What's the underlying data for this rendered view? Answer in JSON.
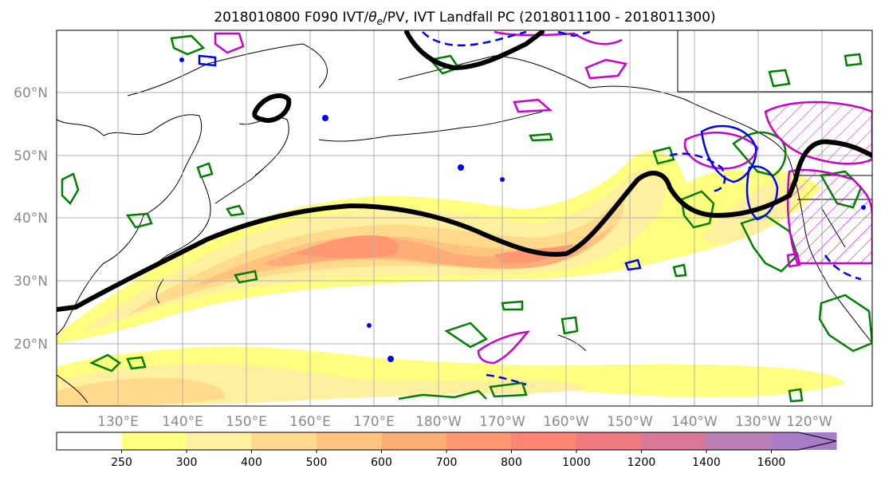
{
  "title": {
    "prefix": "2018010800 F090 IVT/",
    "theta": "θ",
    "theta_sub": "e",
    "suffix": "/PV, IVT Landfall PC (2018011100 - 2018011300)"
  },
  "map": {
    "lat_labels": [
      "60°N",
      "50°N",
      "40°N",
      "30°N",
      "20°N"
    ],
    "lon_labels": [
      "130°E",
      "140°E",
      "150°E",
      "160°E",
      "170°E",
      "180°W",
      "170°W",
      "160°W",
      "150°W",
      "140°W",
      "130°W",
      "120°W"
    ]
  },
  "colorbar": {
    "tick_labels": [
      "250",
      "300",
      "400",
      "500",
      "600",
      "700",
      "800",
      "1000",
      "1200",
      "1400",
      "1600"
    ],
    "colors": [
      "#ffffff",
      "#ffff7f",
      "#fff0a0",
      "#ffd98c",
      "#ffc380",
      "#ffad77",
      "#ff9773",
      "#ff8474",
      "#f07a80",
      "#d97896",
      "#b97fb4",
      "#a87cc6"
    ]
  },
  "legend_colors": {
    "ivt_axis": "#000000",
    "pv": "#008000",
    "theta_warm": "#cc00cc",
    "theta_cold": "#0000ff"
  }
}
